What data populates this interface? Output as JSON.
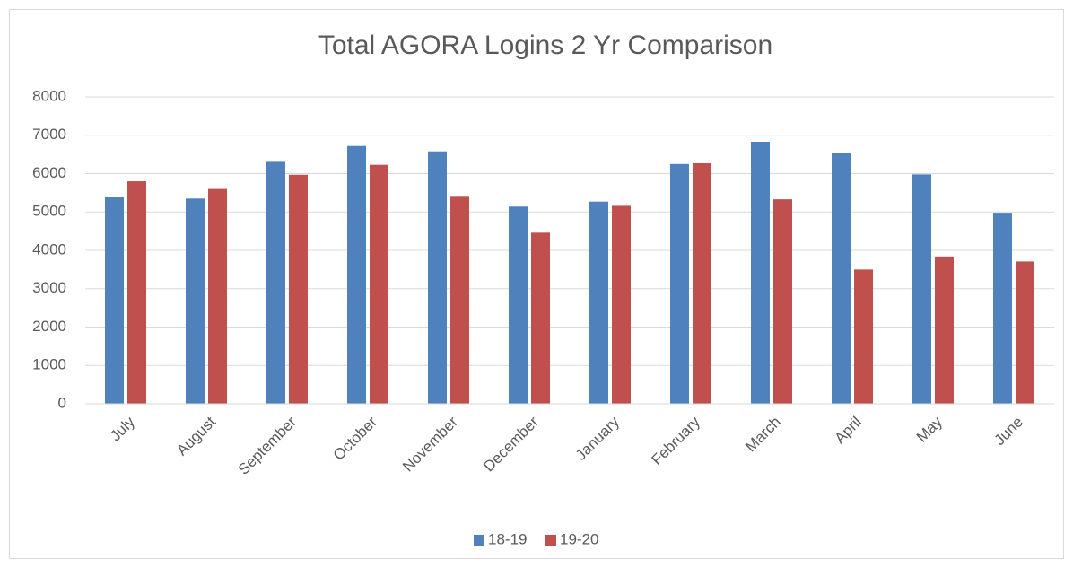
{
  "chart_data": {
    "type": "bar",
    "title": "Total AGORA Logins 2 Yr Comparison",
    "categories": [
      "July",
      "August",
      "September",
      "October",
      "November",
      "December",
      "January",
      "February",
      "March",
      "April",
      "May",
      "June"
    ],
    "series": [
      {
        "name": "18-19",
        "color": "#4f81bd",
        "values": [
          5400,
          5350,
          6330,
          6720,
          6580,
          5140,
          5270,
          6250,
          6830,
          6540,
          5980,
          4980
        ]
      },
      {
        "name": "19-20",
        "color": "#c0504d",
        "values": [
          5800,
          5600,
          5970,
          6230,
          5420,
          4460,
          5160,
          6270,
          5330,
          3500,
          3840,
          3710
        ]
      }
    ],
    "ylim": [
      0,
      8000
    ],
    "yticks": [
      0,
      1000,
      2000,
      3000,
      4000,
      5000,
      6000,
      7000,
      8000
    ],
    "grid": true,
    "legend": "bottom"
  }
}
